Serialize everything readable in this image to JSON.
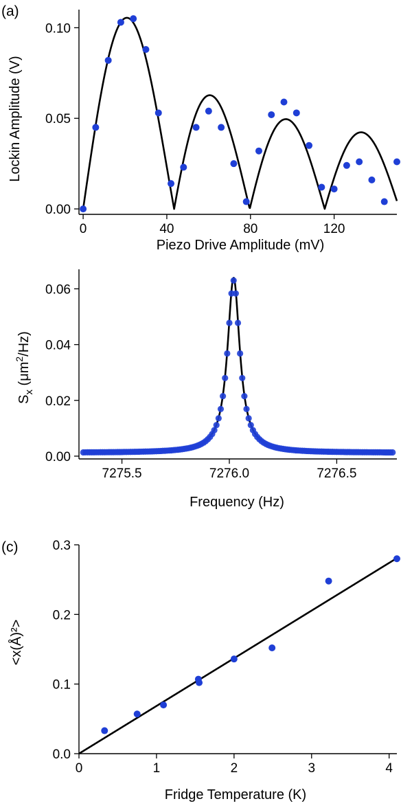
{
  "colors": {
    "points": "#1f3fd6",
    "fit": "#000000",
    "axes": "#000000",
    "background": "#ffffff"
  },
  "chart_data": [
    {
      "panel_label": "(a)",
      "type": "scatter",
      "xlabel": "Piezo Drive Amplitude (mV)",
      "ylabel": "Lockin Amplitude (V)",
      "xlim": [
        -2,
        150
      ],
      "ylim": [
        -0.003,
        0.11
      ],
      "xticks": [
        0,
        40,
        80,
        120
      ],
      "yticks": [
        0.0,
        0.05,
        0.1
      ],
      "xtick_labels": [
        "0",
        "40",
        "80",
        "120"
      ],
      "ytick_labels": [
        "0.00",
        "0.05",
        "0.10"
      ],
      "grid": false,
      "legend": "none",
      "series": [
        {
          "kind": "points",
          "x": [
            0,
            6,
            12,
            18,
            24,
            30,
            36,
            42,
            48,
            54,
            60,
            66,
            72,
            78,
            84,
            90,
            96,
            102,
            108,
            114,
            120,
            126,
            132,
            138,
            144,
            150
          ],
          "y": [
            0.0,
            0.045,
            0.082,
            0.103,
            0.105,
            0.088,
            0.053,
            0.014,
            0.023,
            0.045,
            0.054,
            0.045,
            0.025,
            0.004,
            0.032,
            0.052,
            0.059,
            0.053,
            0.035,
            0.012,
            0.011,
            0.024,
            0.026,
            0.016,
            0.004,
            0.026
          ]
        },
        {
          "kind": "fit_line",
          "model": "abs_bessel_j1",
          "amplitude": 0.1055,
          "x_zero": 43.5,
          "x_range": [
            0,
            150
          ]
        }
      ]
    },
    {
      "panel_label": "",
      "type": "scatter",
      "xlabel": "Frequency (Hz)",
      "ylabel_main": "S",
      "ylabel_sub": "x",
      "ylabel_rest": " (μm",
      "ylabel_sup": "2",
      "ylabel_end": "/Hz)",
      "xlim": [
        7275.3,
        7276.78
      ],
      "ylim": [
        -0.001,
        0.067
      ],
      "xticks": [
        7275.5,
        7276.0,
        7276.5
      ],
      "yticks": [
        0.0,
        0.02,
        0.04,
        0.06
      ],
      "xtick_labels": [
        "7275.5",
        "7276.0",
        "7276.5"
      ],
      "ytick_labels": [
        "0.00",
        "0.02",
        "0.04",
        "0.06"
      ],
      "grid": false,
      "legend": "none",
      "series": [
        {
          "kind": "lorentzian_points",
          "center": 7276.02,
          "peak": 0.063,
          "hwhm": 0.035,
          "baseline": 0.0012,
          "x_start": 7275.32,
          "x_end": 7276.76,
          "step": 0.01
        },
        {
          "kind": "fit_line",
          "model": "lorentzian",
          "center": 7276.02,
          "peak": 0.064,
          "hwhm": 0.035,
          "baseline": 0.0012,
          "x_range": [
            7275.32,
            7276.76
          ]
        }
      ]
    },
    {
      "panel_label": "(c)",
      "type": "scatter",
      "xlabel": "Fridge Temperature (K)",
      "ylabel": "<x(Å)²>",
      "xlim": [
        0,
        4.1
      ],
      "ylim": [
        0,
        0.3
      ],
      "xticks": [
        0,
        1,
        2,
        3,
        4
      ],
      "yticks": [
        0.0,
        0.1,
        0.2,
        0.3
      ],
      "xtick_labels": [
        "0",
        "1",
        "2",
        "3",
        "4"
      ],
      "ytick_labels": [
        "0.0",
        "0.1",
        "0.2",
        "0.3"
      ],
      "grid": false,
      "legend": "none",
      "series": [
        {
          "kind": "points",
          "x": [
            0.33,
            0.75,
            1.09,
            1.54,
            1.55,
            2.0,
            2.49,
            3.22,
            4.1
          ],
          "y": [
            0.033,
            0.057,
            0.07,
            0.107,
            0.102,
            0.136,
            0.152,
            0.248,
            0.28
          ]
        },
        {
          "kind": "fit_line",
          "model": "linear",
          "slope": 0.0685,
          "intercept": 0.0,
          "x_range": [
            0,
            4.1
          ]
        }
      ]
    }
  ]
}
